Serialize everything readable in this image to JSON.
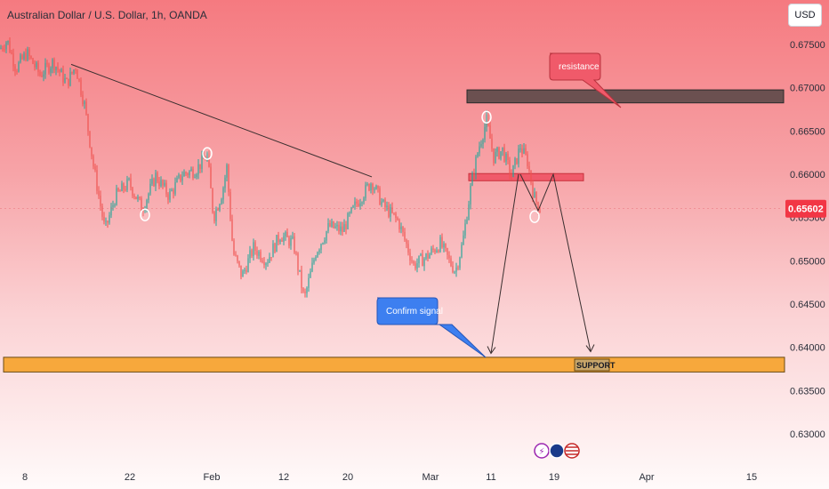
{
  "header": {
    "title": "Australian Dollar / U.S. Dollar, 1h, OANDA",
    "currency": "USD"
  },
  "colors": {
    "up": "#26a69a",
    "down": "#ef5350",
    "support_zone": "#f7a83c",
    "resistance_zone": "#6b5050",
    "entry_zone": "#f05a6a",
    "callout_red": "#f05a6a",
    "callout_blue": "#3d7ff0",
    "last_price": "#f23645"
  },
  "chart_data": {
    "type": "line",
    "title": "Australian Dollar / U.S. Dollar, 1h, OANDA",
    "y_ticks": [
      "0.67500",
      "0.67000",
      "0.66500",
      "0.66000",
      "0.65500",
      "0.65000",
      "0.64500",
      "0.64000",
      "0.63500",
      "0.63000"
    ],
    "x_ticks": [
      "8",
      "22",
      "Feb",
      "12",
      "20",
      "Mar",
      "11",
      "19",
      "Apr",
      "15"
    ],
    "ylim": [
      0.6275,
      0.6785
    ],
    "last_price": "0.65602",
    "price_path": [
      {
        "x": 0,
        "y": 0.6745
      },
      {
        "x": 8,
        "y": 0.6755
      },
      {
        "x": 18,
        "y": 0.6722
      },
      {
        "x": 30,
        "y": 0.674
      },
      {
        "x": 45,
        "y": 0.6715
      },
      {
        "x": 60,
        "y": 0.673
      },
      {
        "x": 75,
        "y": 0.6705
      },
      {
        "x": 85,
        "y": 0.6725
      },
      {
        "x": 95,
        "y": 0.668
      },
      {
        "x": 105,
        "y": 0.661
      },
      {
        "x": 118,
        "y": 0.6535
      },
      {
        "x": 130,
        "y": 0.6575
      },
      {
        "x": 145,
        "y": 0.659
      },
      {
        "x": 160,
        "y": 0.656
      },
      {
        "x": 175,
        "y": 0.6598
      },
      {
        "x": 190,
        "y": 0.6575
      },
      {
        "x": 205,
        "y": 0.66
      },
      {
        "x": 220,
        "y": 0.6605
      },
      {
        "x": 233,
        "y": 0.6622
      },
      {
        "x": 240,
        "y": 0.655
      },
      {
        "x": 250,
        "y": 0.658
      },
      {
        "x": 255,
        "y": 0.6608
      },
      {
        "x": 262,
        "y": 0.651
      },
      {
        "x": 272,
        "y": 0.6482
      },
      {
        "x": 285,
        "y": 0.6515
      },
      {
        "x": 300,
        "y": 0.65
      },
      {
        "x": 315,
        "y": 0.653
      },
      {
        "x": 330,
        "y": 0.652
      },
      {
        "x": 342,
        "y": 0.6455
      },
      {
        "x": 355,
        "y": 0.651
      },
      {
        "x": 370,
        "y": 0.654
      },
      {
        "x": 385,
        "y": 0.6535
      },
      {
        "x": 400,
        "y": 0.6565
      },
      {
        "x": 418,
        "y": 0.6592
      },
      {
        "x": 430,
        "y": 0.6565
      },
      {
        "x": 448,
        "y": 0.6545
      },
      {
        "x": 465,
        "y": 0.6495
      },
      {
        "x": 480,
        "y": 0.6505
      },
      {
        "x": 495,
        "y": 0.652
      },
      {
        "x": 505,
        "y": 0.65
      },
      {
        "x": 512,
        "y": 0.6488
      },
      {
        "x": 520,
        "y": 0.652
      },
      {
        "x": 530,
        "y": 0.659
      },
      {
        "x": 538,
        "y": 0.663
      },
      {
        "x": 547,
        "y": 0.6662
      },
      {
        "x": 555,
        "y": 0.662
      },
      {
        "x": 565,
        "y": 0.6628
      },
      {
        "x": 575,
        "y": 0.6598
      },
      {
        "x": 585,
        "y": 0.6632
      },
      {
        "x": 593,
        "y": 0.6615
      },
      {
        "x": 600,
        "y": 0.6575
      },
      {
        "x": 607,
        "y": 0.656
      }
    ],
    "trendline": [
      {
        "x": 80,
        "y": 0.6727
      },
      {
        "x": 418,
        "y": 0.6597
      }
    ],
    "projection_path": [
      {
        "x": 585,
        "y": 0.66
      },
      {
        "x": 605,
        "y": 0.6558
      },
      {
        "x": 622,
        "y": 0.66
      },
      {
        "x": 664,
        "y": 0.6395
      }
    ],
    "confirm_arrow": [
      {
        "x": 552,
        "y": 0.6393
      },
      {
        "x": 583,
        "y": 0.66
      }
    ],
    "zones": [
      {
        "name": "resistance-zone",
        "x1": 525,
        "x2": 881,
        "y_top": 0.66975,
        "y_bottom": 0.66825
      },
      {
        "name": "entry-zone",
        "x1": 527,
        "x2": 656,
        "y_top": 0.66008,
        "y_bottom": 0.65925
      },
      {
        "name": "support-zone",
        "x1": 4,
        "x2": 882,
        "y_top": 0.63885,
        "y_bottom": 0.63715
      }
    ],
    "markers": [
      {
        "x": 163,
        "y": 0.6553
      },
      {
        "x": 233,
        "y": 0.6624
      },
      {
        "x": 547,
        "y": 0.6666
      },
      {
        "x": 601,
        "y": 0.6551
      }
    ],
    "annotations": {
      "resistance": "resistance",
      "confirm": "Confirm signal",
      "support": "SUPPORT"
    }
  }
}
